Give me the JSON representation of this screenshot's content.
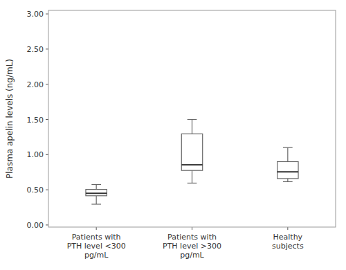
{
  "chart_data": {
    "type": "box",
    "categories": [
      "Patients with\nPTH level <300\npg/mL",
      "Patients with\nPTH level >300\npg/mL",
      "Healthy\nsubjects"
    ],
    "whisker_low": [
      0.295,
      0.595,
      0.615
    ],
    "q1": [
      0.415,
      0.775,
      0.66
    ],
    "median": [
      0.45,
      0.855,
      0.755
    ],
    "q3": [
      0.505,
      1.295,
      0.9
    ],
    "whisker_high": [
      0.575,
      1.5,
      1.1
    ],
    "ylabel": "Plasma apelin levels (ng/mL)",
    "ylim": [
      -0.03,
      3.05
    ],
    "yticks": [
      {
        "value": 0.0,
        "label": "0.00"
      },
      {
        "value": 0.5,
        "label": "0.50"
      },
      {
        "value": 1.0,
        "label": "1.00"
      },
      {
        "value": 1.5,
        "label": "1.50"
      },
      {
        "value": 2.0,
        "label": "2.00"
      },
      {
        "value": 2.5,
        "label": "2.50"
      },
      {
        "value": 3.0,
        "label": "3.00"
      }
    ],
    "color": "#666666",
    "grid": false
  }
}
